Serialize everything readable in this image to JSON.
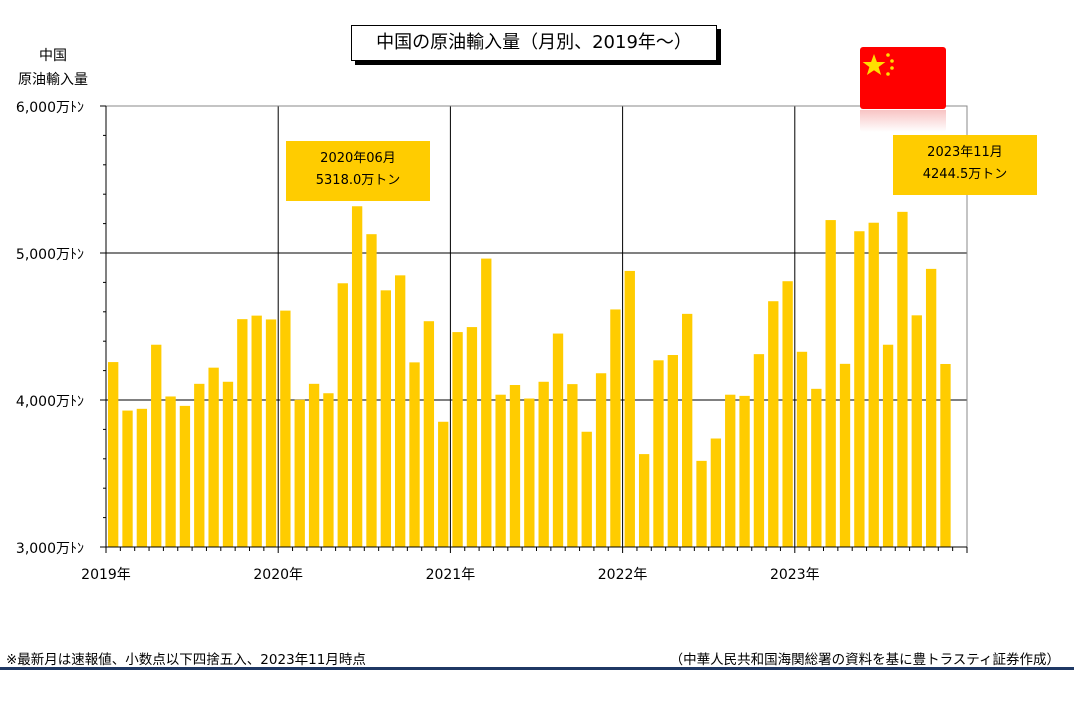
{
  "title": "中国の原油輸入量（月別、2019年～）",
  "y_axis_label": [
    "中国",
    "原油輸入量"
  ],
  "callouts": [
    {
      "period": "2020年06月",
      "value_text": "5318.0万トン"
    },
    {
      "period": "2023年11月",
      "value_text": "4244.5万トン"
    }
  ],
  "footnote_left": "※最新月は速報値、小数点以下四捨五入、2023年11月時点",
  "footnote_right": "（中華人民共和国海関総署の資料を基に豊トラスティ証券作成）",
  "flag_icon": "china-flag",
  "colors": {
    "bar": "#FFCC00",
    "flag": "#FF0000",
    "star": "#FFDE00",
    "rule": "#1F3864"
  },
  "chart_data": {
    "type": "bar",
    "title": "中国の原油輸入量（月別、2019年～）",
    "ylabel": "中国 原油輸入量",
    "ylim": [
      3000,
      6000
    ],
    "y_ticks": [
      {
        "value": 3000,
        "label": "3,000万ﾄﾝ"
      },
      {
        "value": 4000,
        "label": "4,000万ﾄﾝ"
      },
      {
        "value": 5000,
        "label": "5,000万ﾄﾝ"
      },
      {
        "value": 6000,
        "label": "6,000万ﾄﾝ"
      }
    ],
    "x_year_labels": [
      "2019年",
      "2020年",
      "2021年",
      "2022年",
      "2023年"
    ],
    "grid": true,
    "series": [
      {
        "values": [
          4258,
          3928,
          3940,
          4376,
          4024,
          3960,
          4110,
          4220,
          4124,
          4550,
          4574,
          4548,
          4608,
          4002,
          4110,
          4046,
          4794,
          5318,
          5128,
          4746,
          4848,
          4256,
          4536,
          3852,
          4462,
          4496,
          4962,
          4036,
          4102,
          4010,
          4124,
          4452,
          4108,
          3784,
          4182,
          4616,
          4878,
          3632,
          4270,
          4306,
          4586,
          3586,
          3738,
          4036,
          4028,
          4312,
          4672,
          4808,
          4328,
          4076,
          5224,
          4246,
          5148,
          5206,
          4376,
          5280,
          4576,
          4892,
          4245
        ]
      }
    ]
  }
}
